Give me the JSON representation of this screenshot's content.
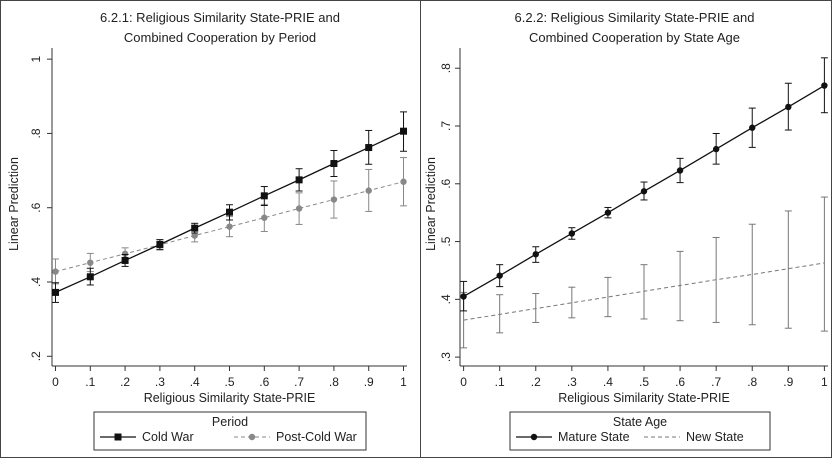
{
  "chart_data": [
    {
      "type": "line",
      "title": [
        "6.2.1: Religious Similarity State-PRIE and",
        "Combined Cooperation by Period"
      ],
      "xlabel": "Religious Similarity State-PRIE",
      "ylabel": "Linear Prediction",
      "x": [
        0,
        0.1,
        0.2,
        0.3,
        0.4,
        0.5,
        0.6,
        0.7,
        0.8,
        0.9,
        1
      ],
      "xticks": [
        0,
        0.1,
        0.2,
        0.3,
        0.4,
        0.5,
        0.6,
        0.7,
        0.8,
        0.9,
        1
      ],
      "xtick_labels": [
        "0",
        ".1",
        ".2",
        ".3",
        ".4",
        ".5",
        ".6",
        ".7",
        ".8",
        ".9",
        "1"
      ],
      "yticks": [
        0.2,
        0.4,
        0.6,
        0.8,
        1
      ],
      "ytick_labels": [
        ".2",
        ".4",
        ".6",
        ".8",
        "1"
      ],
      "ylim": [
        0.19,
        1.03
      ],
      "legend_title": "Period",
      "legend_position": "bottom",
      "series": [
        {
          "name": "Cold War",
          "style": "solid",
          "marker": "square",
          "color": "#111111",
          "values": [
            0.372,
            0.414,
            0.458,
            0.501,
            0.545,
            0.588,
            0.632,
            0.675,
            0.719,
            0.762,
            0.806
          ],
          "lower": [
            0.345,
            0.392,
            0.442,
            0.488,
            0.532,
            0.567,
            0.606,
            0.645,
            0.684,
            0.717,
            0.752
          ],
          "upper": [
            0.398,
            0.437,
            0.474,
            0.514,
            0.558,
            0.608,
            0.657,
            0.705,
            0.754,
            0.808,
            0.858
          ]
        },
        {
          "name": "Post-Cold War",
          "style": "dashed",
          "marker": "circle",
          "color": "#888888",
          "values": [
            0.428,
            0.452,
            0.476,
            0.5,
            0.525,
            0.549,
            0.573,
            0.598,
            0.622,
            0.646,
            0.67
          ],
          "lower": [
            0.395,
            0.428,
            0.46,
            0.486,
            0.508,
            0.522,
            0.536,
            0.555,
            0.572,
            0.59,
            0.605
          ],
          "upper": [
            0.462,
            0.477,
            0.492,
            0.514,
            0.54,
            0.576,
            0.609,
            0.64,
            0.672,
            0.703,
            0.735
          ]
        }
      ]
    },
    {
      "type": "line",
      "title": [
        "6.2.2: Religious Similarity State-PRIE and",
        "Combined Cooperation by State Age"
      ],
      "xlabel": "Religious Similarity State-PRIE",
      "ylabel": "Linear Prediction",
      "x": [
        0,
        0.1,
        0.2,
        0.3,
        0.4,
        0.5,
        0.6,
        0.7,
        0.8,
        0.9,
        1
      ],
      "xticks": [
        0,
        0.1,
        0.2,
        0.3,
        0.4,
        0.5,
        0.6,
        0.7,
        0.8,
        0.9,
        1
      ],
      "xtick_labels": [
        "0",
        ".1",
        ".2",
        ".3",
        ".4",
        ".5",
        ".6",
        ".7",
        ".8",
        ".9",
        "1"
      ],
      "yticks": [
        0.3,
        0.4,
        0.5,
        0.6,
        0.7,
        0.8
      ],
      "ytick_labels": [
        ".3",
        ".4",
        ".5",
        ".6",
        ".7",
        ".8"
      ],
      "ylim": [
        0.295,
        0.835
      ],
      "legend_title": "State Age",
      "legend_position": "bottom",
      "series": [
        {
          "name": "Mature State",
          "style": "solid",
          "marker": "circle",
          "color": "#111111",
          "values": [
            0.405,
            0.441,
            0.478,
            0.514,
            0.55,
            0.587,
            0.623,
            0.66,
            0.697,
            0.733,
            0.77
          ],
          "lower": [
            0.38,
            0.422,
            0.464,
            0.504,
            0.541,
            0.572,
            0.602,
            0.634,
            0.663,
            0.693,
            0.723
          ],
          "upper": [
            0.431,
            0.46,
            0.491,
            0.524,
            0.559,
            0.603,
            0.644,
            0.687,
            0.731,
            0.774,
            0.818
          ]
        },
        {
          "name": "New State",
          "style": "dashed",
          "marker": "none",
          "color": "#777777",
          "values": [
            0.364,
            0.374,
            0.384,
            0.394,
            0.404,
            0.414,
            0.424,
            0.434,
            0.443,
            0.453,
            0.463
          ],
          "lower": [
            0.316,
            0.342,
            0.36,
            0.368,
            0.37,
            0.366,
            0.363,
            0.36,
            0.356,
            0.35,
            0.345
          ],
          "upper": [
            0.412,
            0.408,
            0.41,
            0.421,
            0.438,
            0.46,
            0.483,
            0.507,
            0.53,
            0.553,
            0.577
          ]
        }
      ]
    }
  ]
}
